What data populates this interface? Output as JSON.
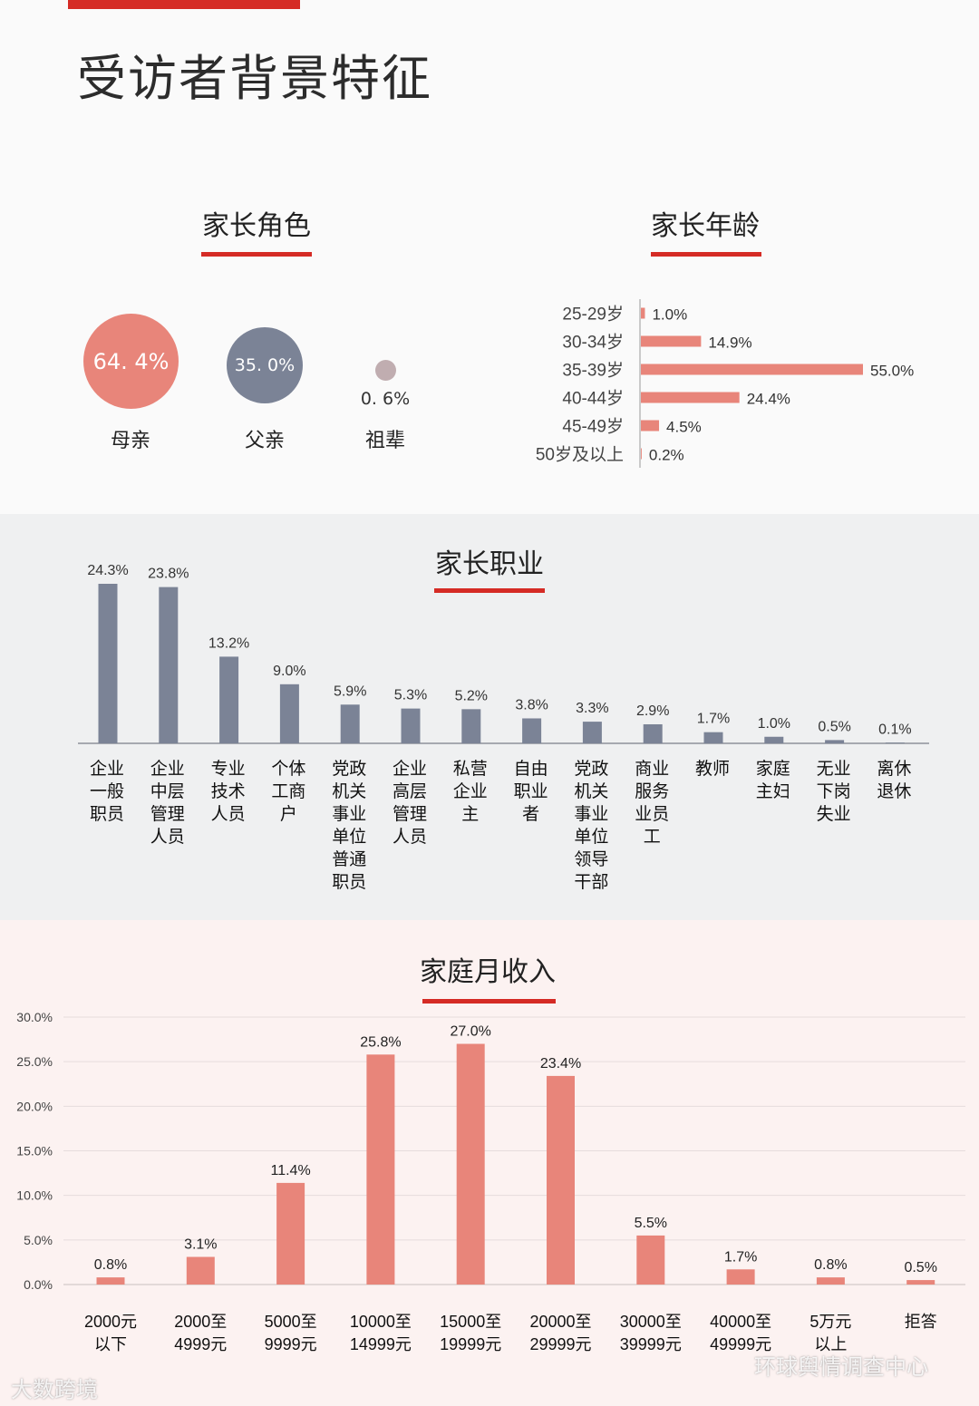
{
  "page_title": "受访者背景特征",
  "role": {
    "title": "家长角色",
    "items": [
      {
        "label": "母亲",
        "value_text": "64. 4%",
        "value": 64.4
      },
      {
        "label": "父亲",
        "value_text": "35. 0%",
        "value": 35.0
      },
      {
        "label": "祖辈",
        "value_text": "0. 6%",
        "value": 0.6
      }
    ]
  },
  "age": {
    "title": "家长年龄"
  },
  "occupation": {
    "title": "家长职业"
  },
  "income": {
    "title": "家庭月收入"
  },
  "watermarks": {
    "left": "大数跨境",
    "right": "环球舆情调查中心"
  },
  "colors": {
    "accent_red": "#d52b25",
    "salmon": "#e8857a",
    "slate": "#7b8396",
    "dot_gray": "#c0adb0"
  },
  "chart_data": [
    {
      "type": "bar",
      "orientation": "horizontal",
      "title": "家长年龄",
      "categories": [
        "25-29岁",
        "30-34岁",
        "35-39岁",
        "40-44岁",
        "45-49岁",
        "50岁及以上"
      ],
      "values": [
        1.0,
        14.9,
        55.0,
        24.4,
        4.5,
        0.2
      ],
      "value_labels": [
        "1.0%",
        "14.9%",
        "55.0%",
        "24.4%",
        "4.5%",
        "0.2%"
      ],
      "xlim": [
        0,
        55
      ]
    },
    {
      "type": "bar",
      "title": "家长职业",
      "categories": [
        [
          "企业",
          "一般",
          "职员"
        ],
        [
          "企业",
          "中层",
          "管理",
          "人员"
        ],
        [
          "专业",
          "技术",
          "人员"
        ],
        [
          "个体",
          "工商",
          "户"
        ],
        [
          "党政",
          "机关",
          "事业",
          "单位",
          "普通",
          "职员"
        ],
        [
          "企业",
          "高层",
          "管理",
          "人员"
        ],
        [
          "私营",
          "企业",
          "主"
        ],
        [
          "自由",
          "职业",
          "者"
        ],
        [
          "党政",
          "机关",
          "事业",
          "单位",
          "领导",
          "干部"
        ],
        [
          "商业",
          "服务",
          "业员",
          "工"
        ],
        [
          "教师"
        ],
        [
          "家庭",
          "主妇"
        ],
        [
          "无业",
          "下岗",
          "失业"
        ],
        [
          "离休",
          "退休"
        ]
      ],
      "values": [
        24.3,
        23.8,
        13.2,
        9.0,
        5.9,
        5.3,
        5.2,
        3.8,
        3.3,
        2.9,
        1.7,
        1.0,
        0.5,
        0.1
      ],
      "value_labels": [
        "24.3%",
        "23.8%",
        "13.2%",
        "9.0%",
        "5.9%",
        "5.3%",
        "5.2%",
        "3.8%",
        "3.3%",
        "2.9%",
        "1.7%",
        "1.0%",
        "0.5%",
        "0.1%"
      ],
      "ylim": [
        0,
        25
      ]
    },
    {
      "type": "bar",
      "title": "家庭月收入",
      "categories": [
        [
          "2000元",
          "以下"
        ],
        [
          "2000至",
          "4999元"
        ],
        [
          "5000至",
          "9999元"
        ],
        [
          "10000至",
          "14999元"
        ],
        [
          "15000至",
          "19999元"
        ],
        [
          "20000至",
          "29999元"
        ],
        [
          "30000至",
          "39999元"
        ],
        [
          "40000至",
          "49999元"
        ],
        [
          "5万元",
          "以上"
        ],
        [
          "拒答"
        ]
      ],
      "values": [
        0.8,
        3.1,
        11.4,
        25.8,
        27.0,
        23.4,
        5.5,
        1.7,
        0.8,
        0.5
      ],
      "value_labels": [
        "0.8%",
        "3.1%",
        "11.4%",
        "25.8%",
        "27.0%",
        "23.4%",
        "5.5%",
        "1.7%",
        "0.8%",
        "0.5%"
      ],
      "ylim": [
        0,
        30
      ],
      "yticks": [
        "0.0%",
        "5.0%",
        "10.0%",
        "15.0%",
        "20.0%",
        "25.0%",
        "30.0%"
      ],
      "grid": true
    }
  ]
}
